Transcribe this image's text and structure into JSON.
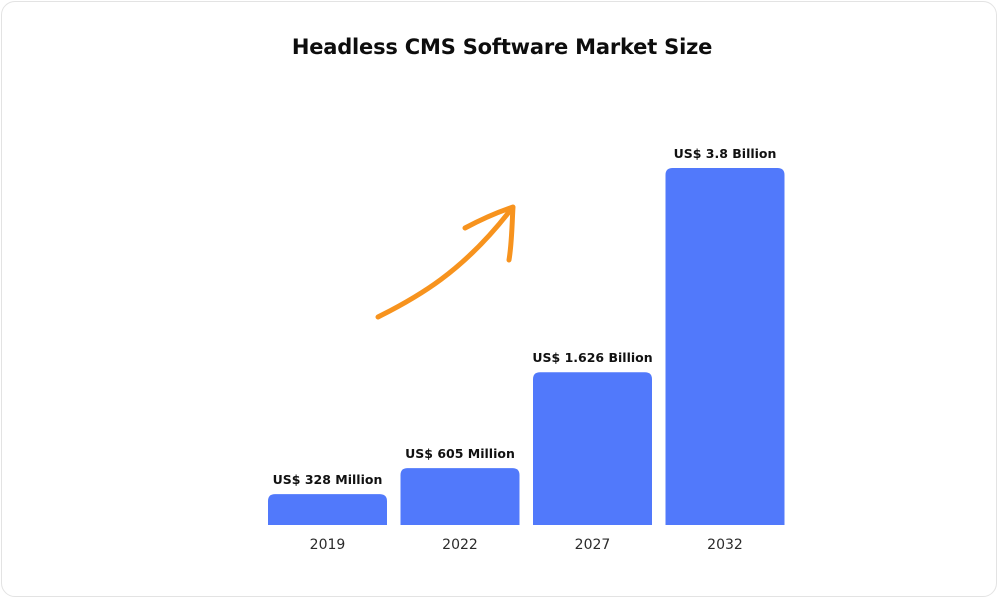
{
  "chart_data": {
    "type": "bar",
    "title": "Headless CMS Software Market Size",
    "xlabel": "",
    "ylabel": "",
    "categories": [
      "2019",
      "2022",
      "2027",
      "2032"
    ],
    "values": [
      0.328,
      0.605,
      1.626,
      3.8
    ],
    "unit": "US$ Billion",
    "data_labels": [
      "US$ 328 Million",
      "US$ 605 Million",
      "US$ 1.626 Billion",
      "US$ 3.8 Billion"
    ],
    "ylim": [
      0,
      3.8
    ],
    "grid": false,
    "legend": "none",
    "bar_color": "#5179fb",
    "arrow_color": "#f7931e"
  }
}
